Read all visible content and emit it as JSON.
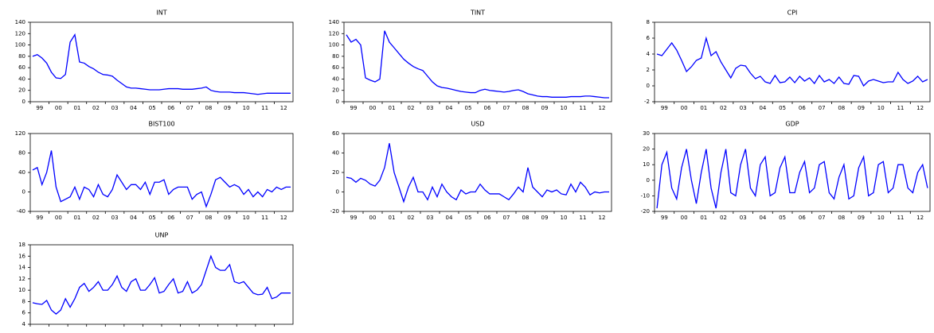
{
  "chart_data": [
    {
      "type": "line",
      "title": "INT",
      "color": "#0000ff",
      "ylim": [
        0,
        140
      ],
      "yticks": [
        0,
        20,
        40,
        60,
        80,
        100,
        120,
        140
      ],
      "categories": [
        "99",
        null,
        null,
        null,
        "00",
        null,
        null,
        null,
        "01",
        null,
        null,
        null,
        "02",
        null,
        null,
        null,
        "03",
        null,
        null,
        null,
        "04",
        null,
        null,
        null,
        "05",
        null,
        null,
        null,
        "06",
        null,
        null,
        null,
        "07",
        null,
        null,
        null,
        "08",
        null,
        null,
        null,
        "09",
        null,
        null,
        null,
        "10",
        null,
        null,
        null,
        "11",
        null,
        null,
        null,
        "12",
        null,
        null,
        null
      ],
      "values": [
        80,
        83,
        77,
        68,
        52,
        42,
        41,
        48,
        105,
        118,
        70,
        68,
        62,
        58,
        52,
        48,
        47,
        45,
        38,
        32,
        26,
        24,
        24,
        23,
        22,
        21,
        21,
        21,
        22,
        23,
        23,
        23,
        22,
        22,
        22,
        23,
        24,
        26,
        20,
        18,
        17,
        17,
        17,
        16,
        16,
        16,
        15,
        14,
        13,
        14,
        15,
        15,
        15,
        15,
        15,
        15
      ]
    },
    {
      "type": "line",
      "title": "TINT",
      "color": "#0000ff",
      "ylim": [
        0,
        140
      ],
      "yticks": [
        0,
        20,
        40,
        60,
        80,
        100,
        120,
        140
      ],
      "categories": [
        "99",
        null,
        null,
        null,
        "00",
        null,
        null,
        null,
        "01",
        null,
        null,
        null,
        "02",
        null,
        null,
        null,
        "03",
        null,
        null,
        null,
        "04",
        null,
        null,
        null,
        "05",
        null,
        null,
        null,
        "06",
        null,
        null,
        null,
        "07",
        null,
        null,
        null,
        "08",
        null,
        null,
        null,
        "09",
        null,
        null,
        null,
        "10",
        null,
        null,
        null,
        "11",
        null,
        null,
        null,
        "12",
        null,
        null,
        null
      ],
      "values": [
        118,
        105,
        110,
        100,
        42,
        38,
        35,
        40,
        125,
        105,
        95,
        85,
        75,
        68,
        62,
        58,
        55,
        45,
        35,
        28,
        25,
        24,
        22,
        20,
        18,
        17,
        16,
        16,
        20,
        22,
        20,
        19,
        18,
        17,
        18,
        20,
        21,
        18,
        14,
        12,
        10,
        9,
        9,
        8,
        8,
        8,
        8,
        9,
        9,
        9,
        10,
        10,
        9,
        8,
        7,
        7
      ]
    },
    {
      "type": "line",
      "title": "CPI",
      "color": "#0000ff",
      "ylim": [
        -2,
        8
      ],
      "yticks": [
        -2,
        0,
        2,
        4,
        6,
        8
      ],
      "categories": [
        "99",
        null,
        null,
        null,
        "00",
        null,
        null,
        null,
        "01",
        null,
        null,
        null,
        "02",
        null,
        null,
        null,
        "03",
        null,
        null,
        null,
        "04",
        null,
        null,
        null,
        "05",
        null,
        null,
        null,
        "06",
        null,
        null,
        null,
        "07",
        null,
        null,
        null,
        "08",
        null,
        null,
        null,
        "09",
        null,
        null,
        null,
        "10",
        null,
        null,
        null,
        "11",
        null,
        null,
        null,
        "12",
        null,
        null,
        null
      ],
      "values": [
        4.0,
        3.8,
        4.6,
        5.4,
        4.5,
        3.2,
        1.8,
        2.4,
        3.2,
        3.5,
        6.0,
        3.8,
        4.3,
        3.0,
        2.0,
        1.0,
        2.2,
        2.6,
        2.5,
        1.6,
        0.9,
        1.2,
        0.5,
        0.3,
        1.3,
        0.4,
        0.5,
        1.1,
        0.4,
        1.2,
        0.6,
        1.0,
        0.3,
        1.3,
        0.5,
        0.8,
        0.3,
        1.1,
        0.3,
        0.2,
        1.3,
        1.2,
        0.0,
        0.6,
        0.8,
        0.6,
        0.4,
        0.5,
        0.5,
        1.7,
        0.8,
        0.3,
        0.6,
        1.2,
        0.5,
        0.8
      ]
    },
    {
      "type": "line",
      "title": "BIST100",
      "color": "#0000ff",
      "ylim": [
        -40,
        120
      ],
      "yticks": [
        -40,
        0,
        40,
        80,
        120
      ],
      "categories": [
        "99",
        null,
        null,
        null,
        "00",
        null,
        null,
        null,
        "01",
        null,
        null,
        null,
        "02",
        null,
        null,
        null,
        "03",
        null,
        null,
        null,
        "04",
        null,
        null,
        null,
        "05",
        null,
        null,
        null,
        "06",
        null,
        null,
        null,
        "07",
        null,
        null,
        null,
        "08",
        null,
        null,
        null,
        "09",
        null,
        null,
        null,
        "10",
        null,
        null,
        null,
        "11",
        null,
        null,
        null,
        "12",
        null,
        null,
        null
      ],
      "values": [
        45,
        50,
        15,
        40,
        85,
        10,
        -20,
        -15,
        -10,
        10,
        -15,
        10,
        5,
        -10,
        15,
        -5,
        -10,
        5,
        35,
        20,
        5,
        15,
        15,
        5,
        20,
        -5,
        20,
        20,
        25,
        -5,
        5,
        10,
        10,
        10,
        -15,
        -5,
        0,
        -30,
        -5,
        25,
        30,
        20,
        10,
        15,
        10,
        -5,
        5,
        -10,
        0,
        -10,
        5,
        0,
        10,
        5,
        10,
        10
      ]
    },
    {
      "type": "line",
      "title": "USD",
      "color": "#0000ff",
      "ylim": [
        -20,
        60
      ],
      "yticks": [
        -20,
        0,
        20,
        40,
        60
      ],
      "categories": [
        "99",
        null,
        null,
        null,
        "00",
        null,
        null,
        null,
        "01",
        null,
        null,
        null,
        "02",
        null,
        null,
        null,
        "03",
        null,
        null,
        null,
        "04",
        null,
        null,
        null,
        "05",
        null,
        null,
        null,
        "06",
        null,
        null,
        null,
        "07",
        null,
        null,
        null,
        "08",
        null,
        null,
        null,
        "09",
        null,
        null,
        null,
        "10",
        null,
        null,
        null,
        "11",
        null,
        null,
        null,
        "12",
        null,
        null,
        null
      ],
      "values": [
        15,
        14,
        10,
        14,
        12,
        8,
        6,
        12,
        25,
        50,
        20,
        5,
        -10,
        5,
        15,
        0,
        0,
        -8,
        5,
        -5,
        8,
        0,
        -5,
        -8,
        2,
        -2,
        0,
        0,
        8,
        2,
        -2,
        -2,
        -2,
        -5,
        -8,
        -2,
        5,
        0,
        25,
        5,
        0,
        -5,
        2,
        0,
        2,
        -2,
        -3,
        8,
        0,
        10,
        5,
        -3,
        0,
        -1,
        0,
        0
      ]
    },
    {
      "type": "line",
      "title": "GDP",
      "color": "#0000ff",
      "ylim": [
        -20,
        30
      ],
      "yticks": [
        -20,
        -10,
        0,
        10,
        20,
        30
      ],
      "categories": [
        "99",
        null,
        null,
        null,
        "00",
        null,
        null,
        null,
        "01",
        null,
        null,
        null,
        "02",
        null,
        null,
        null,
        "03",
        null,
        null,
        null,
        "04",
        null,
        null,
        null,
        "05",
        null,
        null,
        null,
        "06",
        null,
        null,
        null,
        "07",
        null,
        null,
        null,
        "08",
        null,
        null,
        null,
        "09",
        null,
        null,
        null,
        "10",
        null,
        null,
        null,
        "11",
        null,
        null,
        null,
        "12",
        null,
        null,
        null
      ],
      "values": [
        -18,
        10,
        18,
        -5,
        -12,
        8,
        20,
        0,
        -15,
        5,
        20,
        -5,
        -18,
        5,
        20,
        -8,
        -10,
        10,
        20,
        -5,
        -10,
        10,
        15,
        -10,
        -8,
        8,
        15,
        -8,
        -8,
        5,
        12,
        -8,
        -5,
        10,
        12,
        -8,
        -12,
        2,
        10,
        -12,
        -10,
        8,
        15,
        -10,
        -8,
        10,
        12,
        -8,
        -5,
        10,
        10,
        -5,
        -8,
        5,
        10,
        -5
      ]
    },
    {
      "type": "line",
      "title": "UNP",
      "color": "#0000ff",
      "ylim": [
        4,
        18
      ],
      "yticks": [
        4,
        6,
        8,
        10,
        12,
        14,
        16,
        18
      ],
      "categories": [
        null,
        null,
        null,
        null,
        null,
        null,
        null,
        null,
        null,
        null,
        null,
        null,
        null,
        null,
        null,
        null,
        null,
        null,
        null,
        null,
        null,
        null,
        null,
        null,
        null,
        null,
        null,
        null,
        null,
        null,
        null,
        null,
        null,
        null,
        null,
        null,
        null,
        null,
        null,
        null,
        null,
        null,
        null,
        null,
        null,
        null,
        null,
        null,
        null,
        null,
        null,
        null,
        null,
        null,
        null,
        null
      ],
      "values": [
        7.8,
        7.6,
        7.5,
        8.2,
        6.5,
        5.8,
        6.5,
        8.5,
        7.0,
        8.5,
        10.5,
        11.2,
        9.8,
        10.5,
        11.5,
        10.0,
        10.0,
        11.0,
        12.5,
        10.5,
        9.8,
        11.5,
        12.0,
        10.0,
        10.0,
        11.0,
        12.2,
        9.5,
        9.8,
        11.0,
        12.0,
        9.5,
        9.8,
        11.5,
        9.5,
        10.0,
        11.0,
        13.5,
        16.0,
        14.0,
        13.5,
        13.5,
        14.5,
        11.5,
        11.2,
        11.5,
        10.5,
        9.5,
        9.2,
        9.3,
        10.5,
        8.5,
        8.8,
        9.5,
        9.5,
        9.5
      ]
    }
  ]
}
